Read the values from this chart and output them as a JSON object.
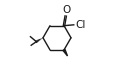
{
  "bg_color": "#ffffff",
  "line_color": "#1a1a1a",
  "text_color": "#1a1a1a",
  "figsize": [
    1.14,
    0.7
  ],
  "dpi": 100,
  "O_label": "O",
  "Cl_label": "Cl",
  "font_size_atom": 7.5
}
